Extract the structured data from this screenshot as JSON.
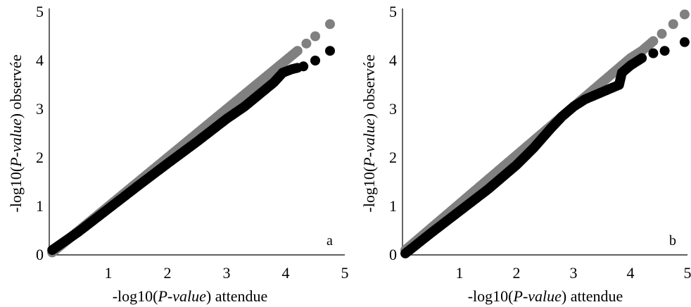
{
  "figure": {
    "panels": [
      "a",
      "b"
    ]
  },
  "chart_data": [
    {
      "type": "scatter",
      "panel_label": "a",
      "xlabel_prefix": "-log10(",
      "xlabel_italic": "P-value",
      "xlabel_suffix": ") attendue",
      "ylabel_prefix": "-log10(",
      "ylabel_italic": "P-value",
      "ylabel_suffix": ") observée",
      "xlim": [
        0,
        5
      ],
      "ylim": [
        0,
        5
      ],
      "xticks": [
        "1",
        "2",
        "3",
        "4",
        "5"
      ],
      "yticks": [
        "0",
        "1",
        "2",
        "3",
        "4",
        "5"
      ],
      "grid": false,
      "colors": {
        "reference": "#808080",
        "observed": "#000000"
      },
      "series": [
        {
          "role": "reference",
          "x": [
            0.05,
            0.5,
            1.0,
            1.5,
            2.0,
            2.5,
            3.0,
            3.5,
            3.8,
            4.0,
            4.1,
            4.2,
            4.35,
            4.5,
            4.75
          ],
          "y": [
            0.05,
            0.5,
            1.0,
            1.5,
            2.0,
            2.5,
            3.0,
            3.5,
            3.8,
            4.0,
            4.1,
            4.2,
            4.35,
            4.5,
            4.75
          ]
        },
        {
          "role": "observed",
          "x": [
            0.05,
            0.5,
            1.0,
            1.5,
            2.0,
            2.5,
            3.0,
            3.3,
            3.6,
            3.8,
            3.95,
            4.1,
            4.2,
            4.3,
            4.5,
            4.75
          ],
          "y": [
            0.1,
            0.48,
            0.95,
            1.42,
            1.88,
            2.33,
            2.8,
            3.05,
            3.35,
            3.55,
            3.75,
            3.82,
            3.85,
            3.88,
            4.0,
            4.2
          ]
        }
      ]
    },
    {
      "type": "scatter",
      "panel_label": "b",
      "xlabel_prefix": "-log10(",
      "xlabel_italic": "P-value",
      "xlabel_suffix": ") attendue",
      "ylabel_prefix": "-log10(",
      "ylabel_italic": "P-value",
      "ylabel_suffix": ") observée",
      "xlim": [
        0,
        5
      ],
      "ylim": [
        0,
        5
      ],
      "xticks": [
        "1",
        "2",
        "3",
        "4",
        "5"
      ],
      "yticks": [
        "0",
        "1",
        "2",
        "3",
        "4",
        "5"
      ],
      "grid": false,
      "colors": {
        "reference": "#808080",
        "observed": "#000000"
      },
      "series": [
        {
          "role": "reference",
          "x": [
            0.05,
            0.5,
            1.0,
            1.5,
            2.0,
            2.5,
            3.0,
            3.5,
            4.0,
            4.2,
            4.4,
            4.55,
            4.75,
            4.95
          ],
          "y": [
            0.1,
            0.55,
            1.05,
            1.55,
            2.05,
            2.55,
            3.05,
            3.55,
            4.05,
            4.2,
            4.4,
            4.55,
            4.75,
            4.95
          ]
        },
        {
          "role": "observed",
          "x": [
            0.05,
            0.5,
            1.0,
            1.5,
            2.0,
            2.3,
            2.6,
            2.8,
            3.0,
            3.2,
            3.5,
            3.8,
            3.85,
            4.0,
            4.2,
            4.4,
            4.6,
            4.95
          ],
          "y": [
            0.03,
            0.45,
            0.9,
            1.35,
            1.85,
            2.2,
            2.6,
            2.85,
            3.05,
            3.2,
            3.35,
            3.5,
            3.75,
            3.9,
            4.05,
            4.15,
            4.2,
            4.38
          ]
        }
      ]
    }
  ]
}
